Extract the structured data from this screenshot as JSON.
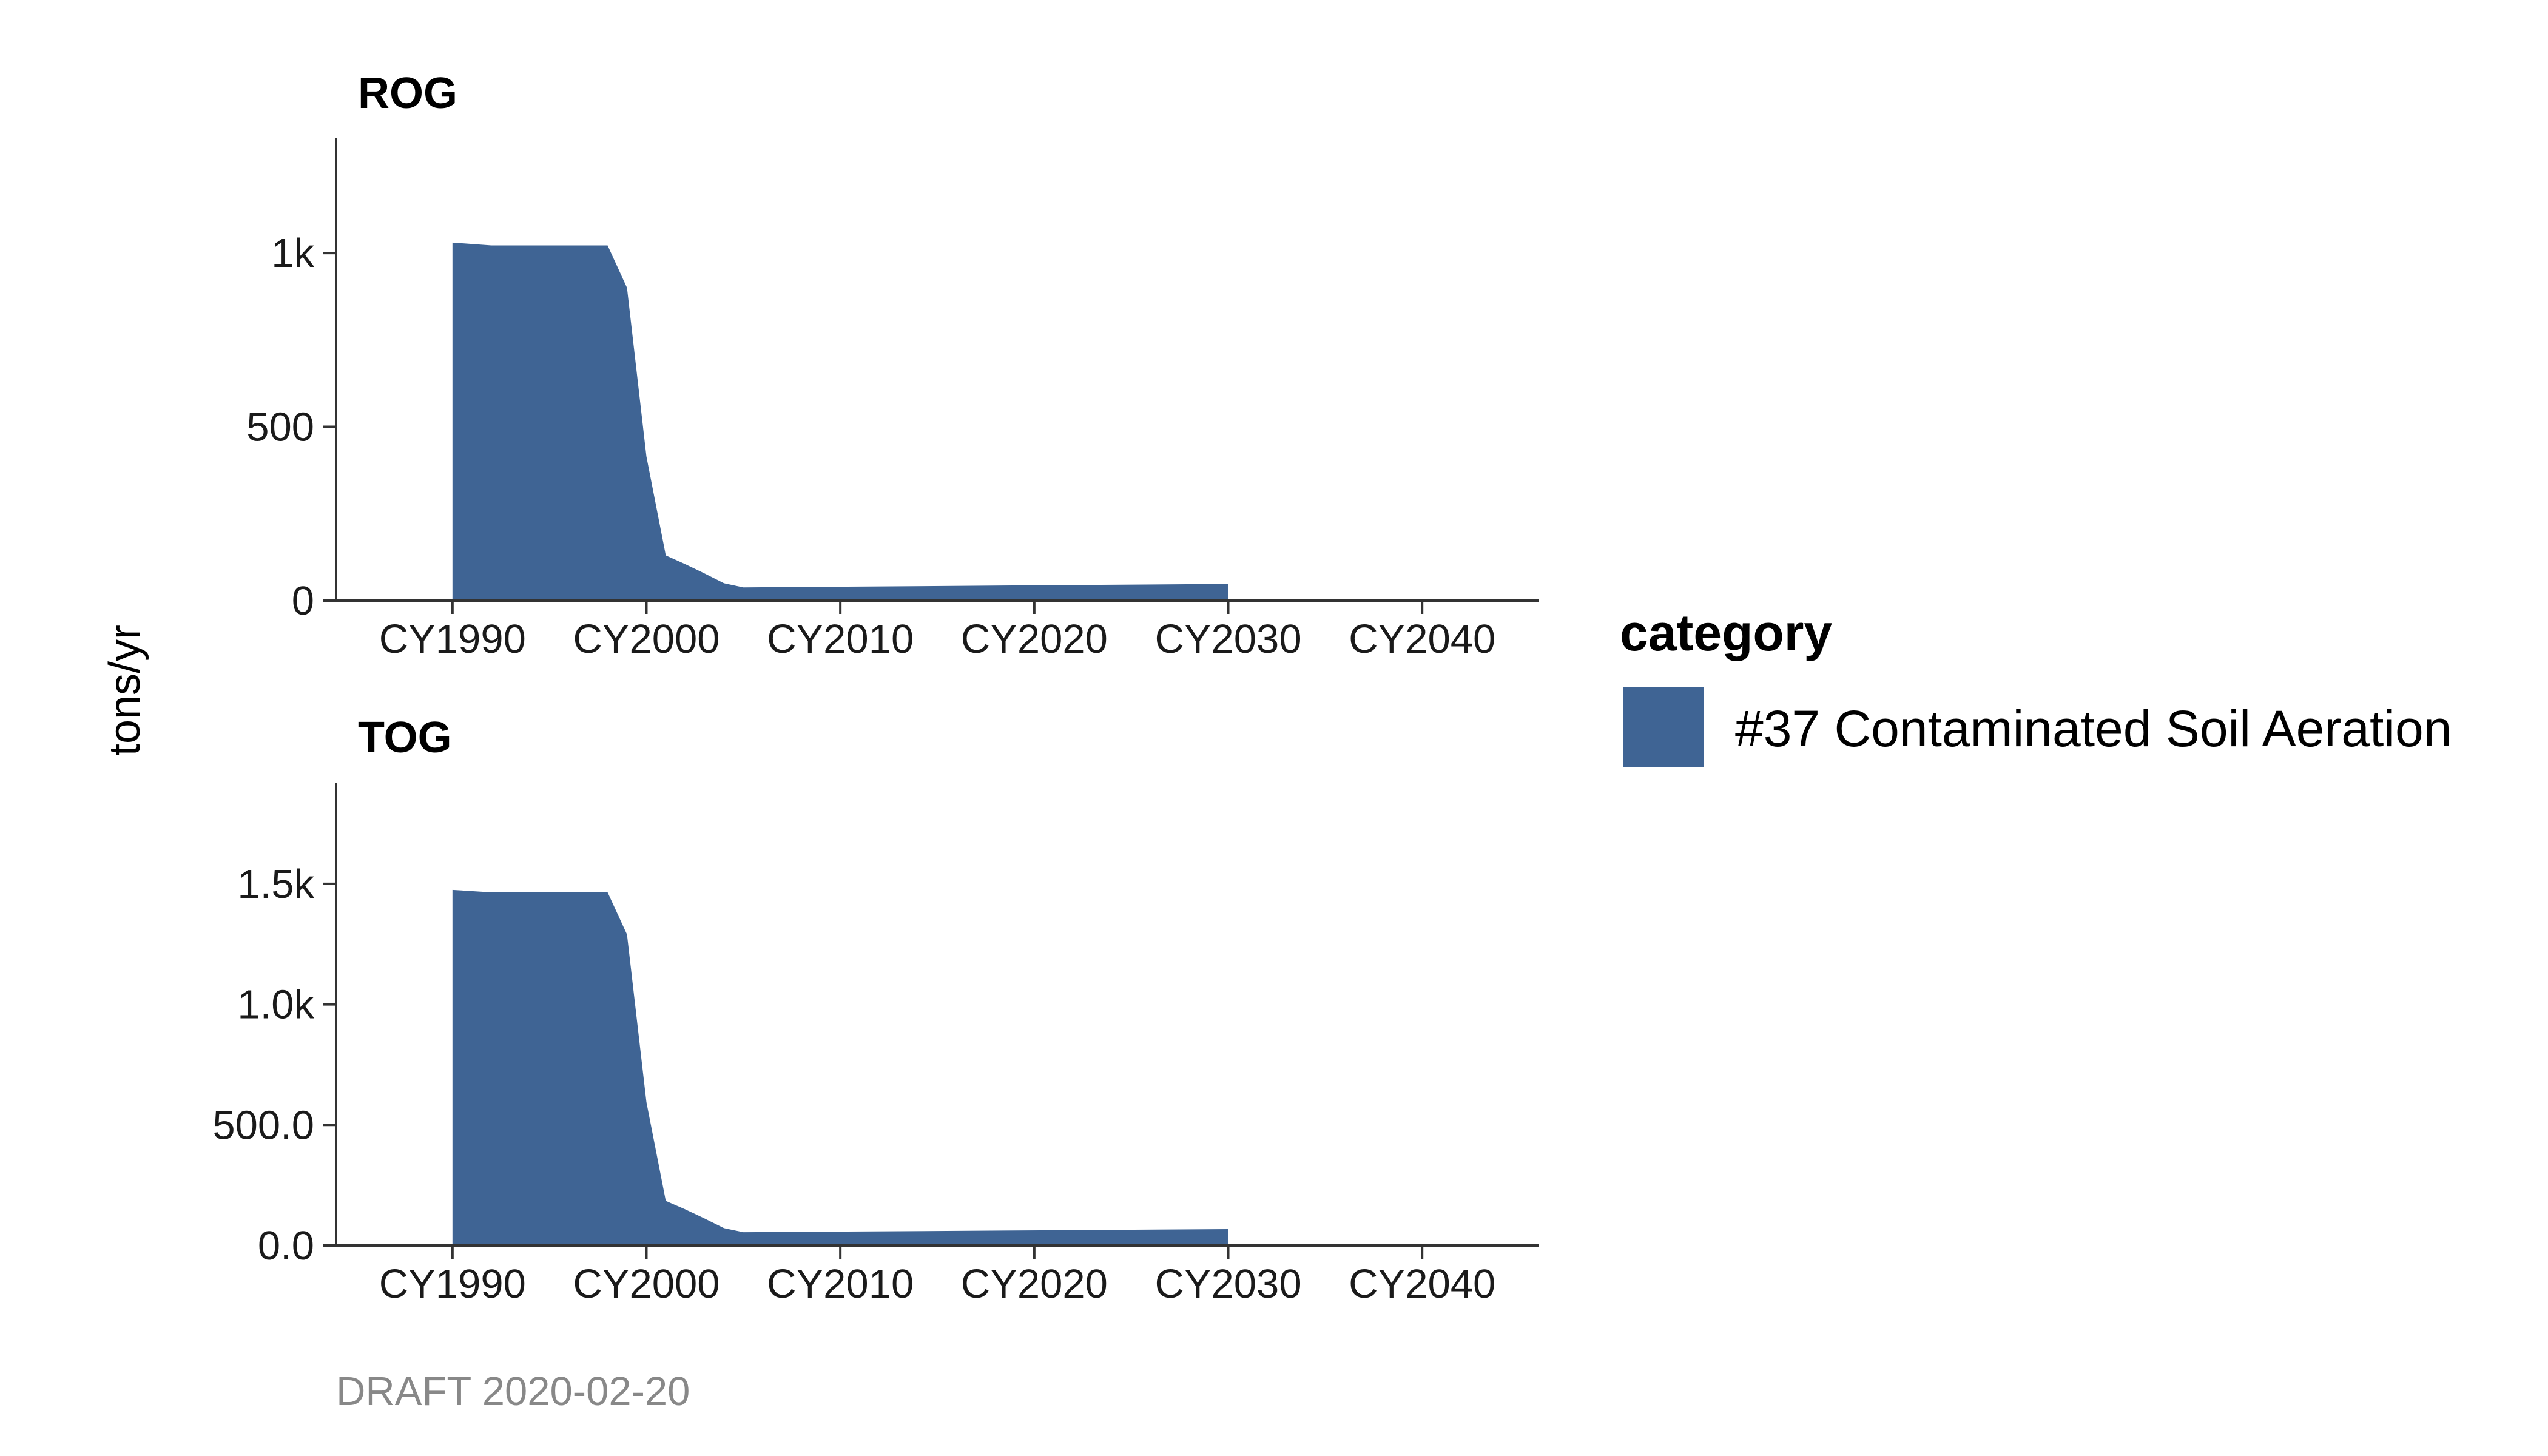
{
  "chart_data": {
    "type": "area",
    "ylabel": "tons/yr",
    "caption": "DRAFT 2020-02-20",
    "legend": {
      "title": "category",
      "placement": "right",
      "entries": [
        {
          "name": "#37 Contaminated Soil Aeration",
          "color": "#3F6494"
        }
      ]
    },
    "grid": false,
    "xlim": [
      1984,
      2046
    ],
    "x_ticks": [
      {
        "value": 1990,
        "label": "CY1990"
      },
      {
        "value": 2000,
        "label": "CY2000"
      },
      {
        "value": 2010,
        "label": "CY2010"
      },
      {
        "value": 2020,
        "label": "CY2020"
      },
      {
        "value": 2030,
        "label": "CY2030"
      },
      {
        "value": 2040,
        "label": "CY2040"
      }
    ],
    "panels": [
      {
        "title": "ROG",
        "ylim": [
          0,
          1330
        ],
        "y_ticks": [
          {
            "value": 0,
            "label": "0"
          },
          {
            "value": 500,
            "label": "500"
          },
          {
            "value": 1000,
            "label": "1k"
          }
        ],
        "series": [
          {
            "name": "#37 Contaminated Soil Aeration",
            "x": [
              1990,
              1992,
              1998,
              1999,
              2000,
              2001,
              2002,
              2003,
              2004,
              2005,
              2030
            ],
            "values": [
              1030,
              1022,
              1022,
              900,
              415,
              130,
              105,
              78,
              50,
              38,
              48
            ]
          }
        ]
      },
      {
        "title": "TOG",
        "ylim": [
          0,
          1920
        ],
        "y_ticks": [
          {
            "value": 0,
            "label": "0.0"
          },
          {
            "value": 500,
            "label": "500.0"
          },
          {
            "value": 1000,
            "label": "1.0k"
          },
          {
            "value": 1500,
            "label": "1.5k"
          }
        ],
        "series": [
          {
            "name": "#37 Contaminated Soil Aeration",
            "x": [
              1990,
              1992,
              1998,
              1999,
              2000,
              2001,
              2002,
              2003,
              2004,
              2005,
              2030
            ],
            "values": [
              1475,
              1465,
              1465,
              1290,
              595,
              185,
              150,
              112,
              72,
              55,
              68
            ]
          }
        ]
      }
    ]
  }
}
